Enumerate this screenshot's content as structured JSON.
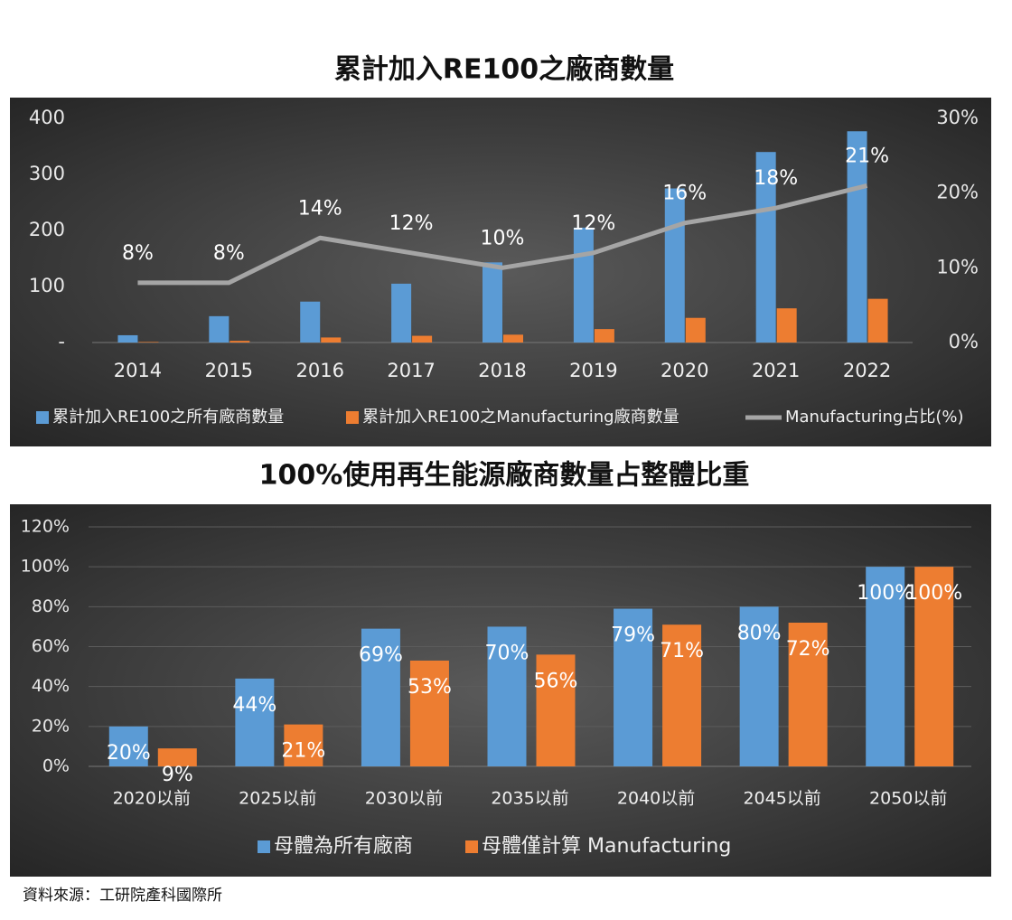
{
  "chart_data": [
    {
      "type": "bar",
      "title": "累計加入RE100之廠商數量",
      "categories": [
        "2014",
        "2015",
        "2016",
        "2017",
        "2018",
        "2019",
        "2020",
        "2021",
        "2022"
      ],
      "series": [
        {
          "name": "累計加入RE100之所有廠商數量",
          "color": "#5b9bd5",
          "values": [
            13,
            47,
            73,
            105,
            143,
            205,
            275,
            340,
            377
          ]
        },
        {
          "name": "累計加入RE100之Manufacturing廠商數量",
          "color": "#ed7d31",
          "values": [
            1,
            3,
            9,
            12,
            14,
            24,
            44,
            61,
            78
          ]
        },
        {
          "name": "Manufacturing占比(%)",
          "color": "#a5a5a5",
          "type": "line",
          "axis": "y2",
          "values": [
            8,
            8,
            14,
            12,
            10,
            12,
            16,
            18,
            21
          ],
          "value_labels": [
            "8%",
            "8%",
            "14%",
            "12%",
            "10%",
            "12%",
            "16%",
            "18%",
            "21%"
          ]
        }
      ],
      "ylim": [
        0,
        400
      ],
      "yticks": [
        {
          "value": 0,
          "label": "-"
        },
        100,
        200,
        300,
        400
      ],
      "y2lim": [
        0,
        30
      ],
      "y2ticks": [
        {
          "value": 0,
          "label": "0%"
        },
        {
          "value": 10,
          "label": "10%"
        },
        {
          "value": 20,
          "label": "20%"
        },
        {
          "value": 30,
          "label": "30%"
        }
      ],
      "grid": false,
      "legend": "bottom"
    },
    {
      "type": "bar",
      "title": "100%使用再生能源廠商數量占整體比重",
      "categories": [
        "2020以前",
        "2025以前",
        "2030以前",
        "2035以前",
        "2040以前",
        "2045以前",
        "2050以前"
      ],
      "series": [
        {
          "name": "母體為所有廠商",
          "color": "#5b9bd5",
          "values": [
            20,
            44,
            69,
            70,
            79,
            80,
            100
          ],
          "value_labels": [
            "20%",
            "44%",
            "69%",
            "70%",
            "79%",
            "80%",
            "100%"
          ]
        },
        {
          "name": "母體僅計算 Manufacturing",
          "color": "#ed7d31",
          "values": [
            9,
            21,
            53,
            56,
            71,
            72,
            100
          ],
          "value_labels": [
            "9%",
            "21%",
            "53%",
            "56%",
            "71%",
            "72%",
            "100%"
          ]
        }
      ],
      "ylim": [
        0,
        120
      ],
      "yticks": [
        {
          "value": 0,
          "label": "0%"
        },
        {
          "value": 20,
          "label": "20%"
        },
        {
          "value": 40,
          "label": "40%"
        },
        {
          "value": 60,
          "label": "60%"
        },
        {
          "value": 80,
          "label": "80%"
        },
        {
          "value": 100,
          "label": "100%"
        },
        {
          "value": 120,
          "label": "120%"
        }
      ],
      "grid": true,
      "legend": "bottom"
    }
  ],
  "source": "資料來源：工研院產科國際所"
}
